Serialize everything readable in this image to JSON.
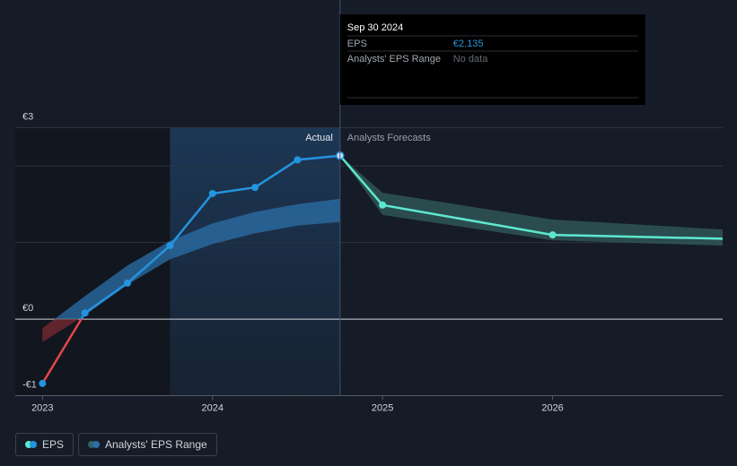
{
  "chart_data": {
    "type": "line",
    "actual_label": "Actual",
    "forecast_label": "Analysts Forecasts",
    "xlim": [
      2022.84,
      2027
    ],
    "xticks": [
      2023,
      2024,
      2025,
      2026
    ],
    "ylim": [
      -1,
      2.5
    ],
    "yticks": [
      {
        "value": -1,
        "label": "-€1"
      },
      {
        "value": 0,
        "label": "€0"
      },
      {
        "value": 1,
        "label": null
      },
      {
        "value": 2,
        "label": null
      },
      {
        "value": 2.5,
        "label": "€3"
      }
    ],
    "grid": true,
    "highlight_x": [
      2023.75,
      2024.75
    ],
    "series": [
      {
        "name": "EPS",
        "color": "#2394df",
        "negative_color": "#e0474c",
        "forecast_color": "#5ee8d0",
        "x": [
          2023,
          2023.25,
          2023.5,
          2023.75,
          2024,
          2024.25,
          2024.5,
          2024.75
        ],
        "values": [
          -0.84,
          0.08,
          0.47,
          0.96,
          1.64,
          1.72,
          2.08,
          2.135
        ],
        "forecast_x": [
          2024.75,
          2025,
          2026,
          2027
        ],
        "forecast_values": [
          2.135,
          1.49,
          1.1,
          1.05
        ]
      },
      {
        "name": "Analysts' EPS Range",
        "color": "#2a6fa8",
        "negative_color": "#7a2a30",
        "forecast_color": "#35615f",
        "x": [
          2023,
          2023.25,
          2023.5,
          2023.75,
          2024,
          2024.25,
          2024.5,
          2024.75
        ],
        "high": [
          -0.12,
          0.3,
          0.7,
          1.02,
          1.25,
          1.4,
          1.5,
          1.57
        ],
        "low": [
          -0.3,
          0.05,
          0.45,
          0.78,
          0.98,
          1.12,
          1.22,
          1.27
        ],
        "forecast_x": [
          2024.75,
          2025,
          2026,
          2027
        ],
        "forecast_high": [
          2.135,
          1.65,
          1.3,
          1.17
        ],
        "forecast_low": [
          2.135,
          1.36,
          1.03,
          0.96
        ]
      }
    ],
    "tooltip": {
      "date": "Sep 30 2024",
      "rows": [
        {
          "label": "EPS",
          "value_label": "€2.135"
        },
        {
          "label": "Analysts' EPS Range",
          "value_label": "No data"
        }
      ]
    }
  }
}
